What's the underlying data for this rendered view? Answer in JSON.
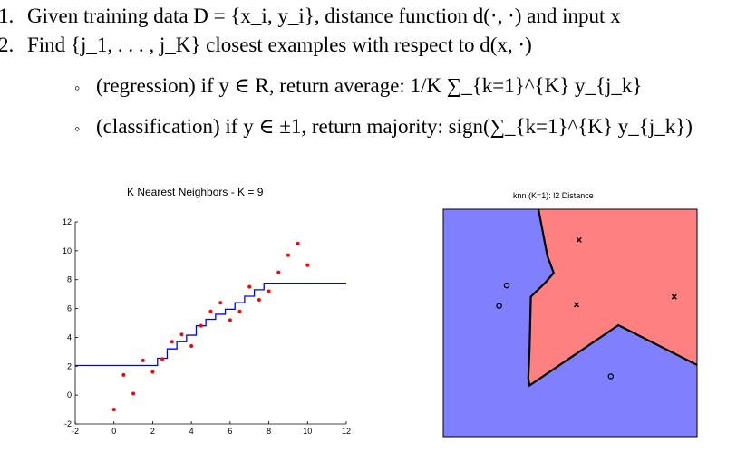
{
  "algorithm": {
    "step1": {
      "num": "1.",
      "text": "Given training data D = {x_i, y_i}, distance function d(·, ·) and input x"
    },
    "step2": {
      "num": "2.",
      "text": "Find {j_1, . . . , j_K} closest examples with respect to d(x, ·)"
    },
    "bullet1": {
      "text": "(regression) if y ∈ R, return average: 1/K ∑_{k=1}^{K} y_{j_k}"
    },
    "bullet2": {
      "text": "(classification) if y ∈ ±1, return majority: sign(∑_{k=1}^{K} y_{j_k})"
    }
  },
  "chart_data": [
    {
      "type": "scatter",
      "title": "K Nearest Neighbors - K = 9",
      "xlim": [
        -2,
        12
      ],
      "ylim": [
        -2,
        12
      ],
      "xticks": [
        -2,
        0,
        2,
        4,
        6,
        8,
        10,
        12
      ],
      "yticks": [
        -2,
        0,
        2,
        4,
        6,
        8,
        10,
        12
      ],
      "grid": false,
      "series": [
        {
          "kind": "points",
          "color": "#ff0000",
          "x": [
            0,
            0.5,
            1.0,
            1.5,
            2.0,
            2.5,
            3.0,
            3.5,
            4.0,
            4.5,
            5.0,
            5.5,
            6.0,
            6.5,
            7.0,
            7.5,
            8.0,
            8.5,
            9.0,
            9.5,
            10.0
          ],
          "y": [
            -1.0,
            1.4,
            0.1,
            2.4,
            1.6,
            2.5,
            3.7,
            4.2,
            3.4,
            4.8,
            5.8,
            6.4,
            5.2,
            5.8,
            7.5,
            6.6,
            7.2,
            8.5,
            9.7,
            10.5,
            9.0
          ]
        },
        {
          "kind": "step-line",
          "color": "#0000ff",
          "x": [
            -2,
            2.25,
            2.25,
            2.75,
            2.75,
            3.25,
            3.25,
            3.75,
            3.75,
            4.25,
            4.25,
            4.75,
            4.75,
            5.25,
            5.25,
            5.75,
            5.75,
            6.25,
            6.25,
            6.75,
            6.75,
            7.25,
            7.25,
            7.75,
            7.75,
            12
          ],
          "y": [
            2.05,
            2.05,
            2.55,
            2.55,
            3.2,
            3.2,
            3.7,
            3.7,
            4.15,
            4.15,
            4.8,
            4.8,
            5.25,
            5.25,
            5.6,
            5.6,
            5.95,
            5.95,
            6.4,
            6.4,
            6.85,
            6.85,
            7.3,
            7.3,
            7.75,
            7.75
          ]
        }
      ]
    },
    {
      "type": "scatter",
      "title": "knn (K=1): l2 Distance",
      "xlim": [
        0,
        1
      ],
      "ylim": [
        0,
        1
      ],
      "grid": false,
      "region_colors": {
        "blue": "#8080ff",
        "red": "#ff8080"
      },
      "series": [
        {
          "name": "",
          "marker": "o",
          "x": [
            0.25,
            0.22,
            0.66
          ],
          "y": [
            0.665,
            0.575,
            0.265
          ]
        },
        {
          "name": "",
          "marker": "x",
          "x": [
            0.535,
            0.525,
            0.91
          ],
          "y": [
            0.865,
            0.58,
            0.615
          ]
        }
      ]
    }
  ]
}
